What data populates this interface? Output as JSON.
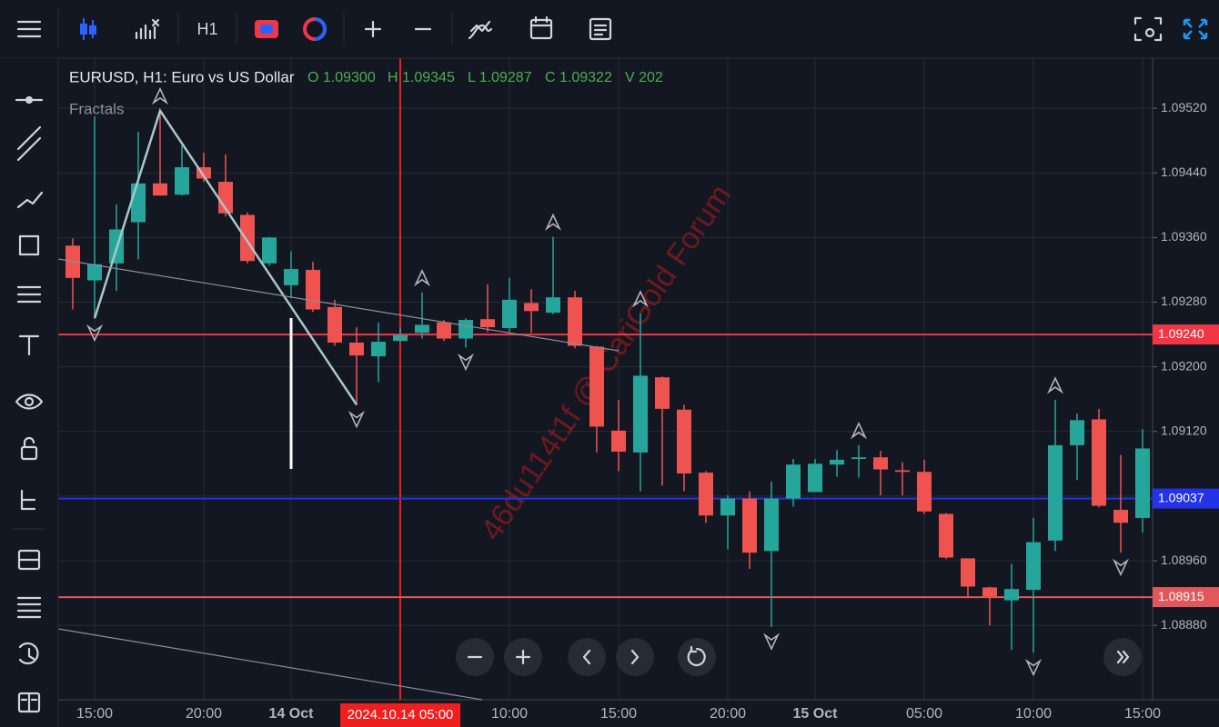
{
  "chart_data": {
    "type": "candlestick",
    "title": "EURUSD, H1: Euro vs US Dollar",
    "ohlcv_labels": [
      "O 1.09300",
      "H 1.09345",
      "L 1.09287",
      "C 1.09322",
      "V 202"
    ],
    "indicator": "Fractals",
    "timeframe": "H1",
    "categories": [
      null,
      "15:00",
      null,
      null,
      null,
      null,
      "20:00",
      null,
      null,
      null,
      "14 Oct",
      null,
      null,
      null,
      null,
      null,
      null,
      null,
      null,
      null,
      "10:00",
      null,
      null,
      null,
      null,
      "15:00",
      null,
      null,
      null,
      null,
      "20:00",
      null,
      null,
      null,
      "15 Oct",
      null,
      null,
      null,
      null,
      "05:00",
      null,
      null,
      null,
      null,
      "10:00",
      null,
      null,
      null,
      null,
      "15:00"
    ],
    "series": [
      {
        "up_color": "#26a69a",
        "down_color": "#ef5350",
        "open": [
          1.0935,
          1.09307,
          1.09328,
          1.09379,
          1.09427,
          1.09413,
          1.09447,
          1.09429,
          1.09388,
          1.09328,
          1.09301,
          1.0932,
          1.09274,
          1.0923,
          1.09213,
          1.09232,
          1.09242,
          1.09255,
          1.09235,
          1.09259,
          1.09248,
          1.09279,
          1.09267,
          1.09286,
          1.09225,
          1.09121,
          1.09094,
          1.09187,
          1.09147,
          1.09069,
          1.09016,
          1.09037,
          1.08972,
          1.09037,
          1.09045,
          1.09079,
          1.09086,
          1.09088,
          1.09072,
          1.0907,
          1.09018,
          1.08963,
          1.08927,
          1.08911,
          1.08924,
          1.08985,
          1.09103,
          1.09135,
          1.09023,
          1.09013
        ],
        "high": [
          1.09359,
          1.0951,
          1.09401,
          1.09491,
          1.09517,
          1.09474,
          1.09465,
          1.09463,
          1.09391,
          1.09361,
          1.09343,
          1.0933,
          1.09283,
          1.09249,
          1.09255,
          1.09249,
          1.09292,
          1.09258,
          1.0926,
          1.09302,
          1.0931,
          1.09296,
          1.09361,
          1.09294,
          1.09226,
          1.09159,
          1.09266,
          1.09188,
          1.09153,
          1.09071,
          1.09041,
          1.09046,
          1.09058,
          1.09086,
          1.09086,
          1.09097,
          1.09103,
          1.09096,
          1.09082,
          1.09085,
          1.09019,
          1.08963,
          1.08928,
          1.08956,
          1.09013,
          1.09159,
          1.09142,
          1.09148,
          1.09091,
          1.09123
        ],
        "low": [
          1.09271,
          1.0926,
          1.09294,
          1.09333,
          1.09412,
          1.09412,
          1.09429,
          1.09386,
          1.09328,
          1.09325,
          1.09285,
          1.09268,
          1.09226,
          1.09153,
          1.09181,
          1.09231,
          1.09235,
          1.09232,
          1.09224,
          1.09243,
          1.09243,
          1.09242,
          1.09265,
          1.09223,
          1.09094,
          1.09071,
          1.09046,
          1.09053,
          1.09046,
          1.09007,
          1.08974,
          1.0895,
          1.08878,
          1.09027,
          1.09045,
          1.09064,
          1.09063,
          1.09041,
          1.09041,
          1.09018,
          1.08962,
          1.08914,
          1.0888,
          1.0885,
          1.08846,
          1.08972,
          1.0906,
          1.09026,
          1.0897,
          1.08995
        ],
        "close": [
          1.0931,
          1.09327,
          1.0937,
          1.09427,
          1.09412,
          1.09447,
          1.09433,
          1.0939,
          1.09331,
          1.0936,
          1.09321,
          1.09271,
          1.0923,
          1.09214,
          1.09231,
          1.09239,
          1.09252,
          1.09235,
          1.09258,
          1.09249,
          1.09283,
          1.09269,
          1.09286,
          1.09226,
          1.09126,
          1.09095,
          1.09189,
          1.09148,
          1.09068,
          1.09016,
          1.09037,
          1.0897,
          1.09037,
          1.09079,
          1.0908,
          1.09085,
          1.09088,
          1.09073,
          1.0907,
          1.09021,
          1.08964,
          1.08928,
          1.08916,
          1.08925,
          1.08983,
          1.09103,
          1.09134,
          1.09028,
          1.09007,
          1.09099
        ]
      }
    ],
    "ylim": [
      1.08788,
      1.09582
    ],
    "yticks": [
      {
        "value": 1.0952,
        "label": "1.09520"
      },
      {
        "value": 1.0944,
        "label": "1.09440"
      },
      {
        "value": 1.0936,
        "label": "1.09360"
      },
      {
        "value": 1.0928,
        "label": "1.09280"
      },
      {
        "value": 1.092,
        "label": "1.09200"
      },
      {
        "value": 1.0912,
        "label": "1.09120"
      },
      {
        "value": 1.0904,
        "label": "1.09040"
      },
      {
        "value": 1.0896,
        "label": "1.08960"
      },
      {
        "value": 1.0888,
        "label": "1.08880"
      }
    ],
    "grid": true,
    "hlines": [
      {
        "value": 1.0924,
        "label": "1.09240",
        "color": "#f23645"
      },
      {
        "value": 1.09037,
        "label": "1.09037",
        "color": "#2432e8"
      },
      {
        "value": 1.08915,
        "label": "1.08915",
        "color": "#e2575c"
      }
    ],
    "crosshair": {
      "index": 15,
      "label": "2024.10.14 05:00",
      "color": "#f21d1d"
    },
    "fractals": {
      "up": [
        4,
        16,
        22,
        26,
        36,
        45
      ],
      "down": [
        1,
        13,
        18,
        32,
        44,
        48
      ]
    },
    "zigzag": [
      1,
      4,
      13
    ],
    "watermark": "46du114t1f @ CariGold Forum"
  }
}
